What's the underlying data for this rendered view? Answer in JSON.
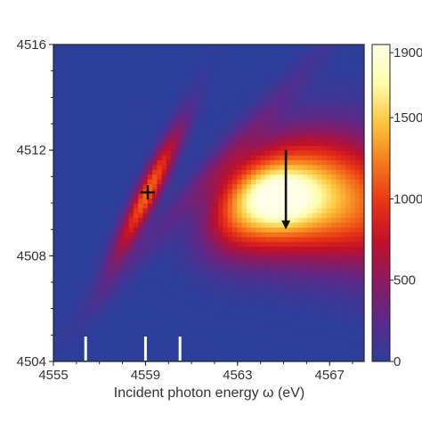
{
  "chart_data": {
    "type": "heatmap",
    "title": "",
    "xlabel": "Incident photon energy ω (eV)",
    "ylabel": "",
    "xlim": [
      4555,
      4568.5
    ],
    "ylim": [
      4504,
      4516
    ],
    "x_ticks": [
      "4555",
      "4559",
      "4563",
      "4567"
    ],
    "y_ticks": [
      "4504",
      "4508",
      "4512",
      "4516"
    ],
    "colorbar": {
      "range": [
        0,
        1950
      ],
      "ticks": [
        "0",
        "500",
        "1000",
        "1500",
        "1900"
      ],
      "colors": [
        "#2b3f9b",
        "#5a2a8a",
        "#8a1a60",
        "#c0102a",
        "#e83214",
        "#f4781c",
        "#fcc43a",
        "#fffca8",
        "#ffffe8"
      ]
    },
    "features": [
      {
        "type": "blob",
        "x": 4559.1,
        "y": 4510.4,
        "peak": 1150,
        "sx": 0.55,
        "sy": 1.3,
        "angle_deg": 35
      },
      {
        "type": "band",
        "x": 4564.8,
        "y": 4510.2,
        "peak": 1800
      },
      {
        "type": "diagonal-streak",
        "x": 4562.0,
        "y": 4511.2,
        "peak": 250
      }
    ],
    "annotations": [
      {
        "type": "plus-marker",
        "x": 4559.1,
        "y": 4510.4
      },
      {
        "type": "arrow-down",
        "x": 4565.1,
        "y_start": 4512.0,
        "y_end": 4509.0
      },
      {
        "type": "white-tick",
        "x": 4556.4
      },
      {
        "type": "white-tick",
        "x": 4559.0
      },
      {
        "type": "white-tick",
        "x": 4560.5
      }
    ],
    "marker_color": "#111111",
    "tick_color": "#ffffff",
    "grid": false
  }
}
